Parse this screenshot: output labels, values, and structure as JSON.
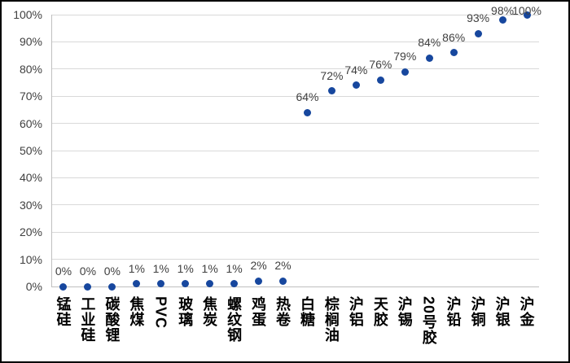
{
  "chart_data": {
    "type": "scatter",
    "title": "",
    "xlabel": "",
    "ylabel": "",
    "categories": [
      "锰硅",
      "工业硅",
      "碳酸锂",
      "焦煤",
      "PVC",
      "玻璃",
      "焦炭",
      "螺纹钢",
      "鸡蛋",
      "热卷",
      "白糖",
      "棕榈油",
      "沪铝",
      "天胶",
      "沪锡",
      "20号胶",
      "沪铅",
      "沪铜",
      "沪银",
      "沪金"
    ],
    "values": [
      0,
      0,
      0,
      1,
      1,
      1,
      1,
      1,
      2,
      2,
      64,
      72,
      74,
      76,
      79,
      84,
      86,
      93,
      98,
      100
    ],
    "point_labels": [
      "0%",
      "0%",
      "0%",
      "1%",
      "1%",
      "1%",
      "1%",
      "1%",
      "2%",
      "2%",
      "64%",
      "72%",
      "74%",
      "76%",
      "79%",
      "84%",
      "86%",
      "93%",
      "98%",
      "100%"
    ],
    "ylim": [
      0,
      100
    ],
    "y_tick_step": 10,
    "y_tick_labels": [
      "0%",
      "10%",
      "20%",
      "30%",
      "40%",
      "50%",
      "60%",
      "70%",
      "80%",
      "90%",
      "100%"
    ],
    "grid": true,
    "legend": "none",
    "colors": {
      "marker": "#17479E",
      "gridline": "#D9D9D9",
      "axis_line": "#BFBFBF",
      "tick_label": "#404040",
      "data_label": "#404040",
      "category_label": "#000000",
      "border": "#000000",
      "background": "#FFFFFF"
    }
  }
}
